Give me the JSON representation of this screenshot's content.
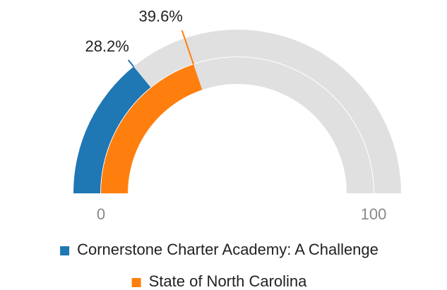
{
  "chart_data": {
    "type": "gauge",
    "series": [
      {
        "name": "Cornerstone Charter Academy: A Challenge",
        "color": "#1f77b4",
        "values": [
          28.2
        ],
        "value_labels": [
          "28.2%"
        ]
      },
      {
        "name": "State of North Carolina",
        "color": "#ff7f0e",
        "values": [
          39.6
        ],
        "value_labels": [
          "39.6%"
        ]
      }
    ],
    "ylim": [
      0,
      100
    ],
    "yticks": [
      0,
      100
    ],
    "track_color": "#e0e0e0"
  }
}
